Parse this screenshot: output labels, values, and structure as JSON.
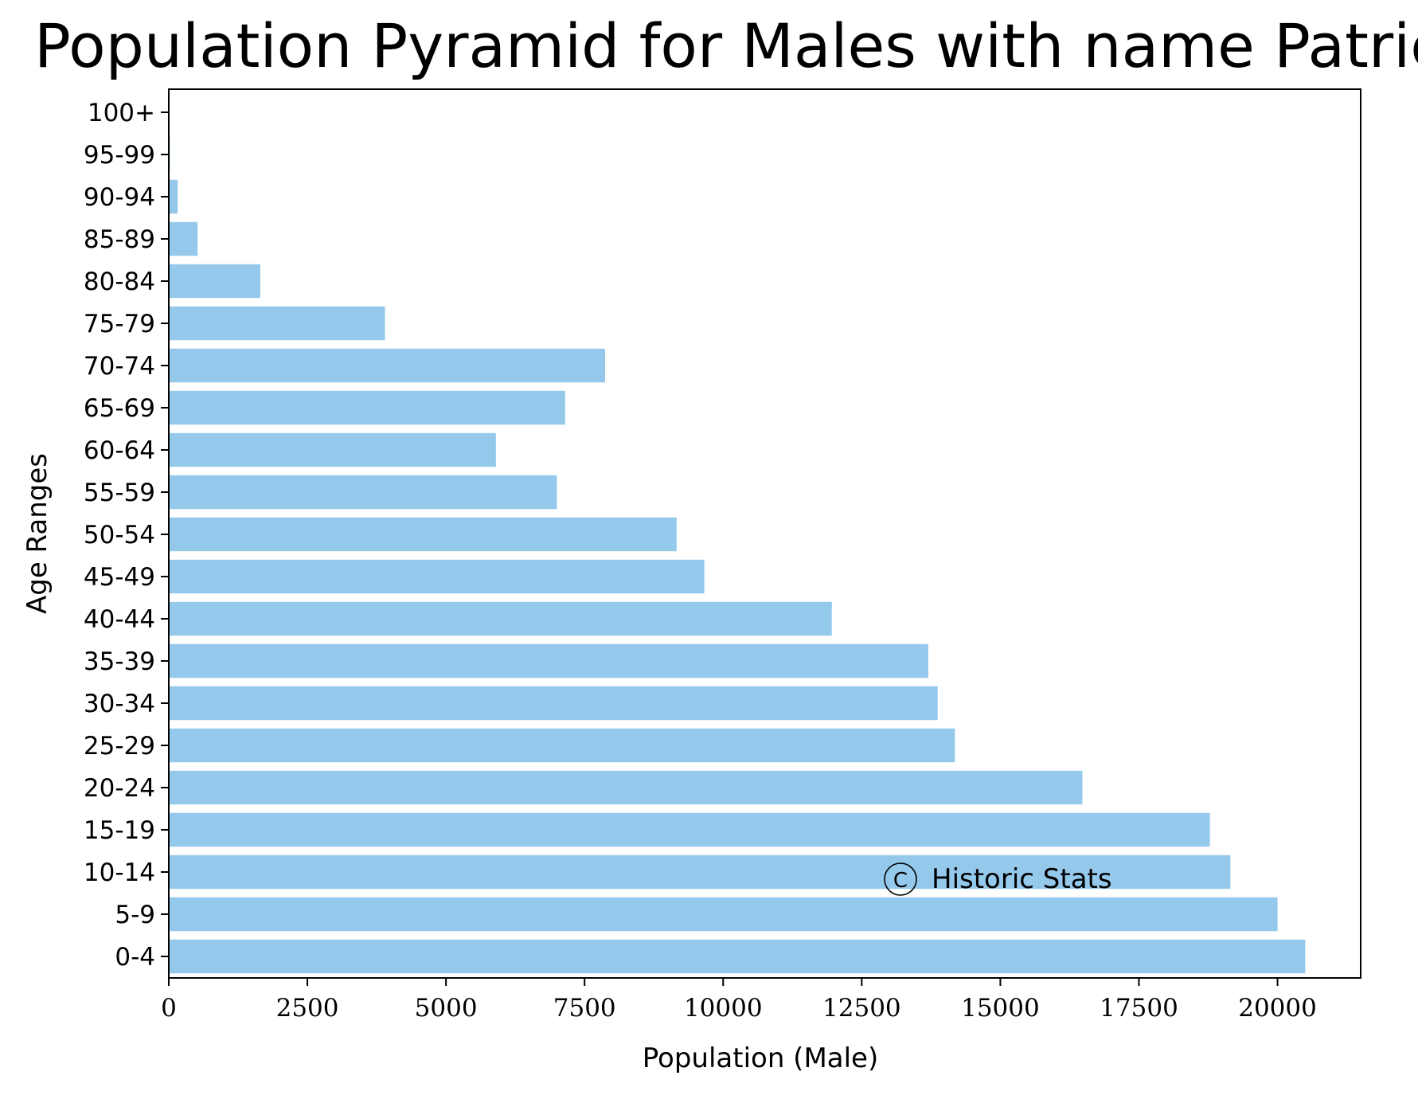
{
  "chart_data": {
    "type": "bar",
    "orientation": "horizontal",
    "title": "Population Pyramid for Males with name Patrick",
    "xlabel": "Population (Male)",
    "ylabel": "Age Ranges",
    "categories": [
      "0-4",
      "5-9",
      "10-14",
      "15-19",
      "20-24",
      "25-29",
      "30-34",
      "35-39",
      "40-44",
      "45-49",
      "50-54",
      "55-59",
      "60-64",
      "65-69",
      "70-74",
      "75-79",
      "80-84",
      "85-89",
      "90-94",
      "95-99",
      "100+"
    ],
    "values": [
      20500,
      20000,
      19150,
      18780,
      16480,
      14180,
      13870,
      13700,
      11960,
      9660,
      9160,
      7000,
      5900,
      7150,
      7870,
      3900,
      1650,
      520,
      160,
      20,
      0
    ],
    "xlim": [
      0,
      21500
    ],
    "xticks": [
      0,
      2500,
      5000,
      7500,
      10000,
      12500,
      15000,
      17500,
      20000
    ],
    "grid": false,
    "bar_color": "#95c9ec",
    "watermark": "Historic Stats",
    "watermark_symbol": "C"
  }
}
